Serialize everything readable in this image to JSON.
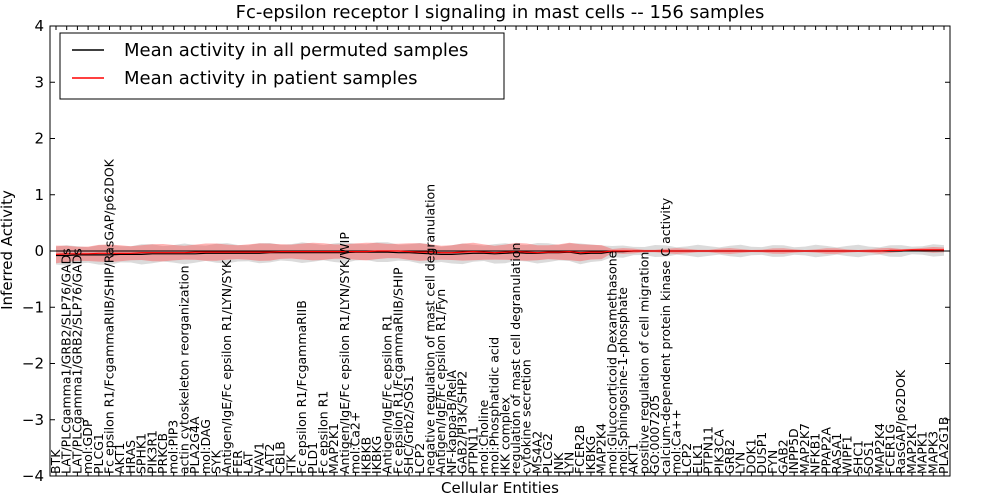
{
  "chart_data": {
    "type": "line",
    "title": "Fc-epsilon receptor I signaling in mast cells -- 156 samples",
    "xlabel": "Cellular Entities",
    "ylabel": "Inferred Activity",
    "ylim": [
      -4,
      4
    ],
    "yticks": [
      4,
      3,
      2,
      1,
      0,
      -1,
      -2,
      -3,
      -4
    ],
    "ytick_labels": [
      "4",
      "3",
      "2",
      "1",
      "0",
      "−1",
      "−2",
      "−3",
      "−4"
    ],
    "legend_position": "top-left",
    "categories": [
      "BTK",
      "LAT/PLCgamma1/GRB2/SLP76/GADs",
      "LAT/PLCgamma1/GRB2/SLP76/GADs",
      "mol:GDP",
      "PLCG1",
      "Fc epsilon R1/FcgammaRIIB/SHIP/RasGAP/p62DOK",
      "AKT1",
      "HRAS",
      "SPHK1",
      "PIK3R1",
      "PRKCB",
      "mol:PIP3",
      "actin cytoskeleton reorganization",
      "PLA2G4A",
      "mol:DAG",
      "SYK",
      "Antigen/IgE/Fc epsilon R1/LYN/SYK",
      "FER",
      "LAT",
      "VAV1",
      "LAT2",
      "CBLB",
      "ITK",
      "Fc epsilon R1/FcgammaRIIB",
      "PLD1",
      "Fc epsilon R1",
      "MAP2K1",
      "Antigen/IgE/Fc epsilon R1/LYN/SYK/WIP",
      "mol:Ca2+",
      "IKBKB",
      "IKBKG",
      "Antigen/IgE/Fc epsilon R1",
      "Fc epsilon R1/FcgammaRIIB/SHIP",
      "SHC/Grb2/SOS1",
      "LCP2",
      "negative regulation of mast cell degranulation",
      "Antigen/IgE/Fc epsilon R1/Fyn",
      "NF-kappa-B/RelA",
      "GAB2/PI3K/SHP2",
      "PTPN11",
      "mol:Choline",
      "mol:Phosphatidic acid",
      "IKK complex",
      "regulation of mast cell degranulation",
      "cytokine secretion",
      "MS4A2",
      "PLCG2",
      "JNK",
      "LYN",
      "FCER2B",
      "IKBKG",
      "MAP2K4",
      "mol:Glucocorticoid Dexamethasone",
      "mol:Sphingosine-1-phosphate",
      "AKT1",
      "positive regulation of cell migration",
      "GO:0007205",
      "calcium-dependent protein kinase C activity",
      "mol:Ca++",
      "LCP2",
      "ELK1",
      "PTPN11",
      "PIK3CA",
      "GRB2",
      "LYN",
      "DOK1",
      "DUSP1",
      "FYN",
      "GAB2",
      "INPP5D",
      "MAP2K7",
      "NFKB1",
      "PPAP2A",
      "RASA1",
      "WIPF1",
      "SHC1",
      "SOS1",
      "MAP2K4",
      "FCER1G",
      "RasGAP/p62DOK",
      "MAP2K1",
      "MAPK1",
      "MAPK3",
      "PLA2G1B"
    ],
    "series": [
      {
        "name": "Mean activity in all permuted samples",
        "color": "#000000",
        "values": [
          -0.08,
          -0.08,
          -0.07,
          -0.07,
          -0.07,
          -0.07,
          -0.06,
          -0.06,
          -0.06,
          -0.05,
          -0.05,
          -0.05,
          -0.05,
          -0.05,
          -0.04,
          -0.04,
          -0.04,
          -0.04,
          -0.04,
          -0.04,
          -0.03,
          -0.03,
          -0.03,
          -0.03,
          -0.03,
          -0.03,
          -0.03,
          -0.03,
          -0.02,
          -0.02,
          -0.02,
          -0.02,
          -0.03,
          -0.03,
          -0.04,
          -0.05,
          -0.06,
          -0.06,
          -0.05,
          -0.04,
          -0.04,
          -0.05,
          -0.04,
          -0.03,
          -0.04,
          -0.04,
          -0.03,
          -0.03,
          -0.02,
          -0.05,
          -0.04,
          -0.04,
          -0.01,
          -0.01,
          0.0,
          0.0,
          0.0,
          0.0,
          0.0,
          0.0,
          0.0,
          0.0,
          0.0,
          0.0,
          0.0,
          0.0,
          0.0,
          0.0,
          0.0,
          0.0,
          0.0,
          0.0,
          0.0,
          0.0,
          0.0,
          0.0,
          0.0,
          0.0,
          0.0,
          0.0,
          0.01,
          0.01,
          0.01,
          0.01
        ]
      },
      {
        "name": "Mean activity in patient samples",
        "color": "#ff0000",
        "values": [
          -0.06,
          -0.05,
          -0.05,
          -0.05,
          -0.04,
          -0.04,
          -0.04,
          -0.04,
          -0.03,
          -0.03,
          -0.03,
          -0.03,
          -0.03,
          -0.02,
          -0.02,
          -0.02,
          -0.02,
          -0.02,
          -0.02,
          -0.02,
          -0.02,
          -0.01,
          -0.01,
          -0.01,
          -0.01,
          -0.01,
          -0.01,
          -0.01,
          -0.01,
          -0.01,
          0.0,
          0.0,
          0.0,
          -0.01,
          -0.02,
          -0.02,
          -0.03,
          -0.03,
          -0.02,
          -0.01,
          -0.02,
          -0.03,
          -0.02,
          -0.01,
          -0.02,
          -0.03,
          -0.02,
          -0.02,
          -0.01,
          -0.03,
          -0.02,
          -0.02,
          0.0,
          0.0,
          0.0,
          0.0,
          0.0,
          0.0,
          0.0,
          0.0,
          0.0,
          0.0,
          0.0,
          0.0,
          0.0,
          0.0,
          0.0,
          0.0,
          0.0,
          0.0,
          0.0,
          0.0,
          0.0,
          0.0,
          0.0,
          0.0,
          0.0,
          0.0,
          0.01,
          0.01,
          0.02,
          0.02,
          0.02,
          0.02
        ]
      }
    ],
    "bands": {
      "permuted_spread": 0.16,
      "patient_spread": 0.14,
      "spread_unit": "activity units (symmetric around each mean line)"
    }
  }
}
